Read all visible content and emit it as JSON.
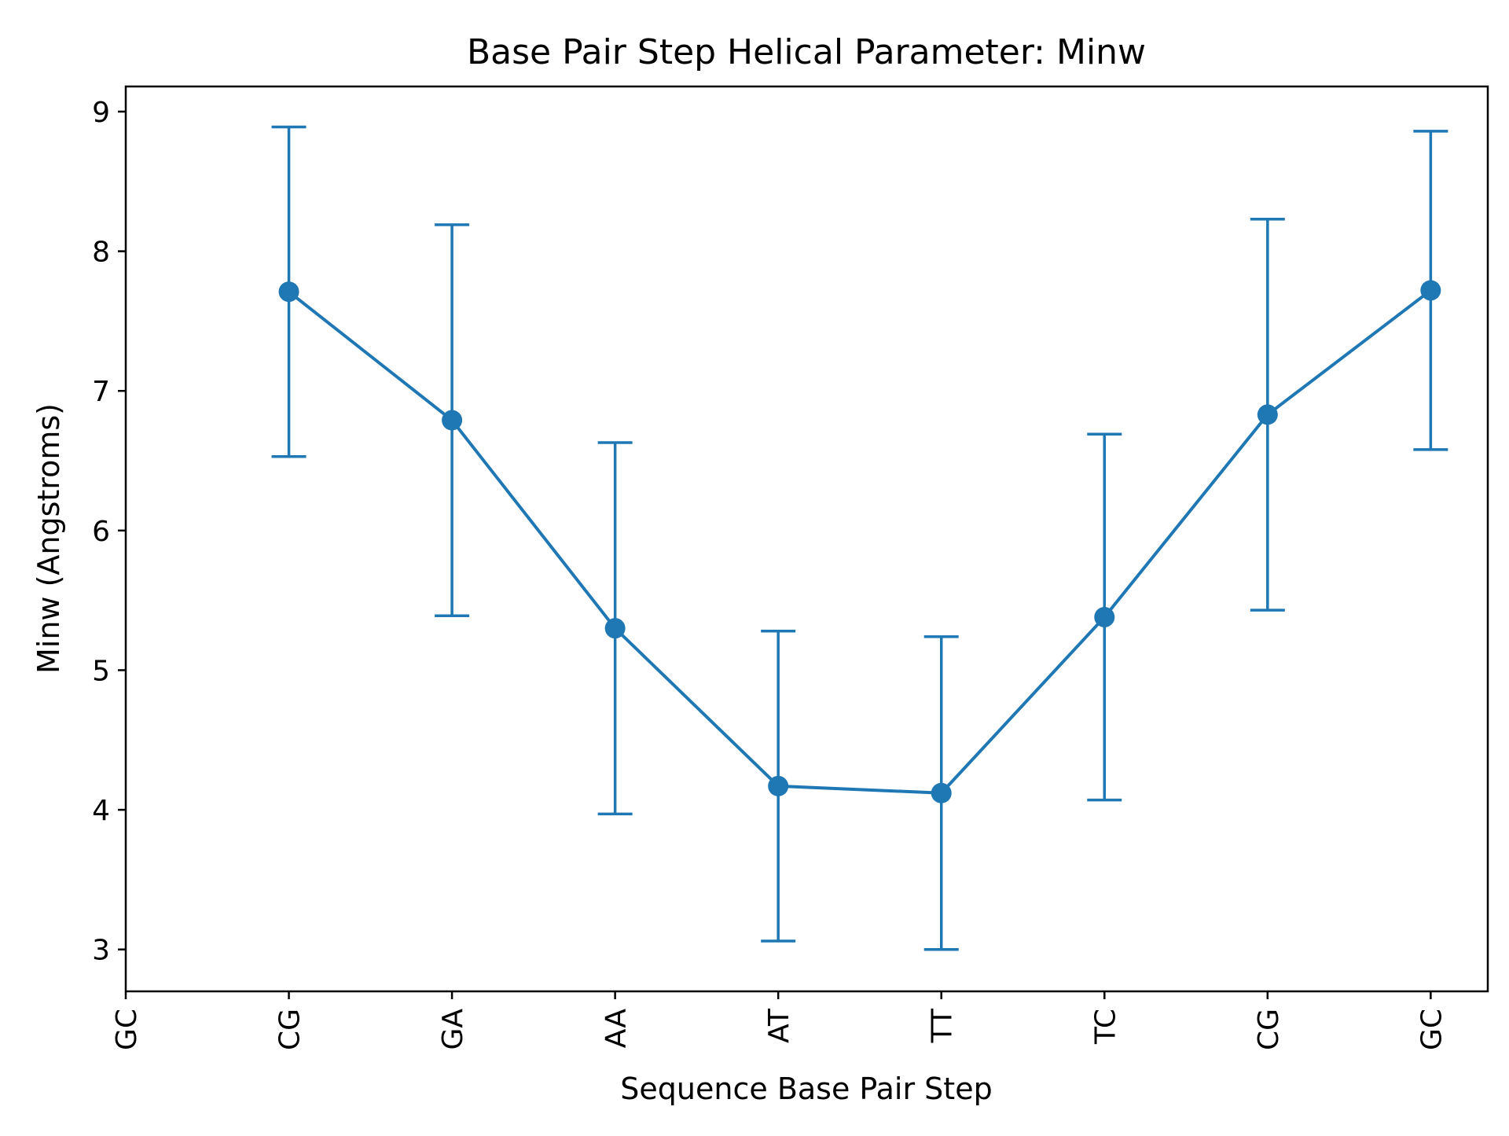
{
  "chart_data": {
    "type": "line",
    "title": "Base Pair Step Helical Parameter: Minw",
    "xlabel": "Sequence Base Pair Step",
    "ylabel": "Minw (Angstroms)",
    "x_tick_labels": [
      "GC",
      "CG",
      "GA",
      "AA",
      "AT",
      "TT",
      "TC",
      "CG",
      "GC"
    ],
    "y_ticks": [
      3,
      4,
      5,
      6,
      7,
      8,
      9
    ],
    "xlim": [
      0,
      8.35
    ],
    "ylim": [
      2.7,
      9.18
    ],
    "grid": false,
    "legend": "none",
    "series": [
      {
        "color": "#1f77b4",
        "x": [
          1,
          2,
          3,
          4,
          5,
          6,
          7,
          8
        ],
        "y": [
          7.71,
          6.79,
          5.3,
          4.17,
          4.12,
          5.38,
          6.83,
          7.72
        ],
        "error": [
          1.18,
          1.4,
          1.33,
          1.11,
          1.12,
          1.31,
          1.4,
          1.14
        ]
      }
    ]
  }
}
